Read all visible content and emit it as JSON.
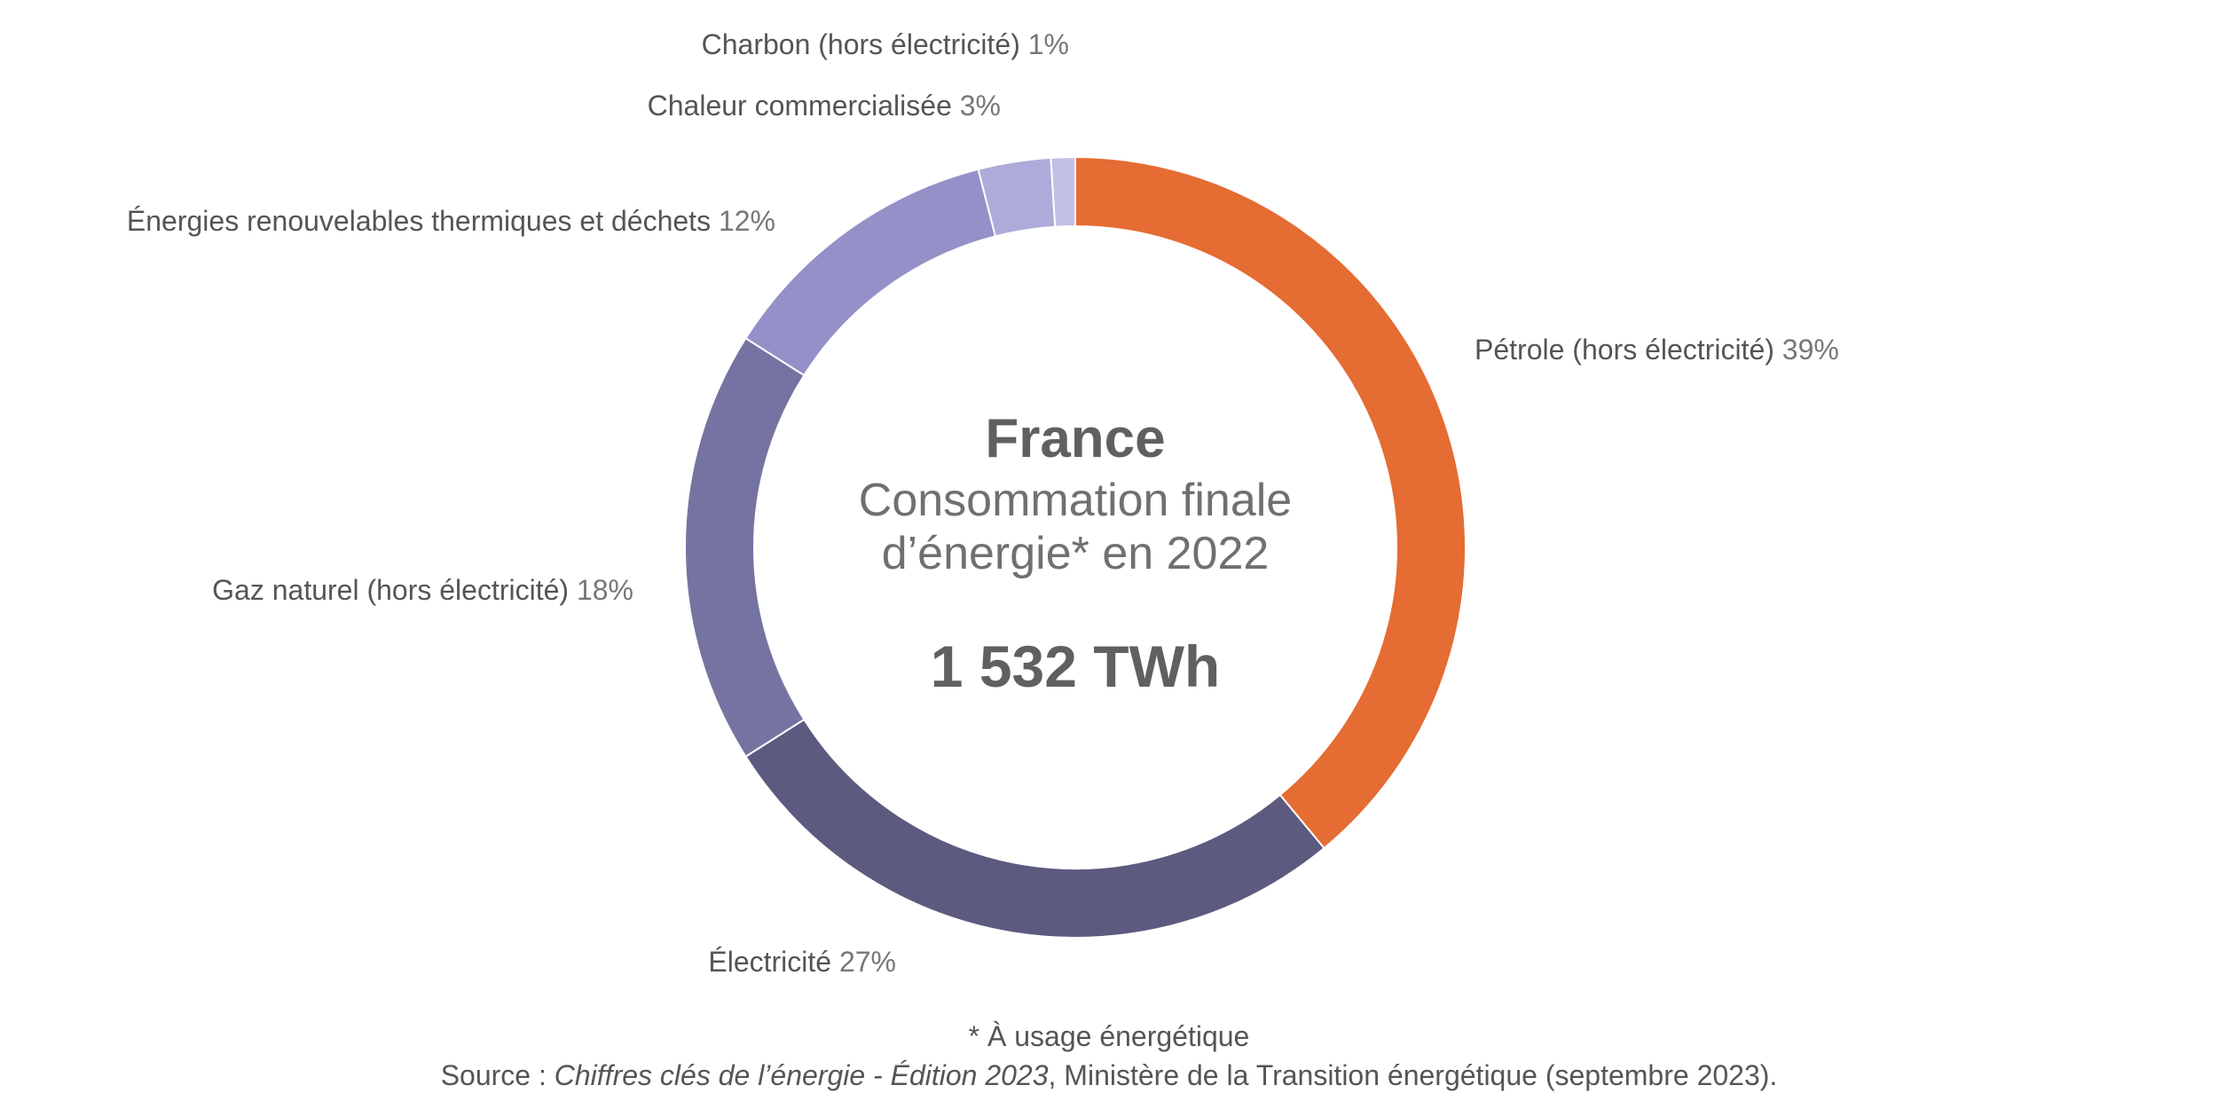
{
  "chart_data": {
    "type": "pie",
    "donut": true,
    "title": "France",
    "subtitle_line1": "Consommation finale",
    "subtitle_line2": "d’énergie* en 2022",
    "total": "1 532 TWh",
    "unit": "%",
    "slices": [
      {
        "label": "Pétrole (hors électricité)",
        "value": 39,
        "pct_label": "39%",
        "color": "#E56C33"
      },
      {
        "label": "Électricité",
        "value": 27,
        "pct_label": "27%",
        "color": "#5D5A80"
      },
      {
        "label": "Gaz naturel (hors électricité)",
        "value": 18,
        "pct_label": "18%",
        "color": "#7573A1"
      },
      {
        "label": "Énergies renouvelables thermiques et déchets",
        "value": 12,
        "pct_label": "12%",
        "color": "#9391C8"
      },
      {
        "label": "Chaleur commercialisée",
        "value": 3,
        "pct_label": "3%",
        "color": "#ADABD9"
      },
      {
        "label": "Charbon (hors électricité)",
        "value": 1,
        "pct_label": "1%",
        "color": "#C2C0E5"
      }
    ]
  },
  "footer": {
    "footnote": "* À usage énergétique",
    "source_prefix": "Source : ",
    "source_title": "Chiffres clés de l’énergie - Édition 2023",
    "source_suffix": ", Ministère de la Transition énergétique (septembre 2023)."
  }
}
